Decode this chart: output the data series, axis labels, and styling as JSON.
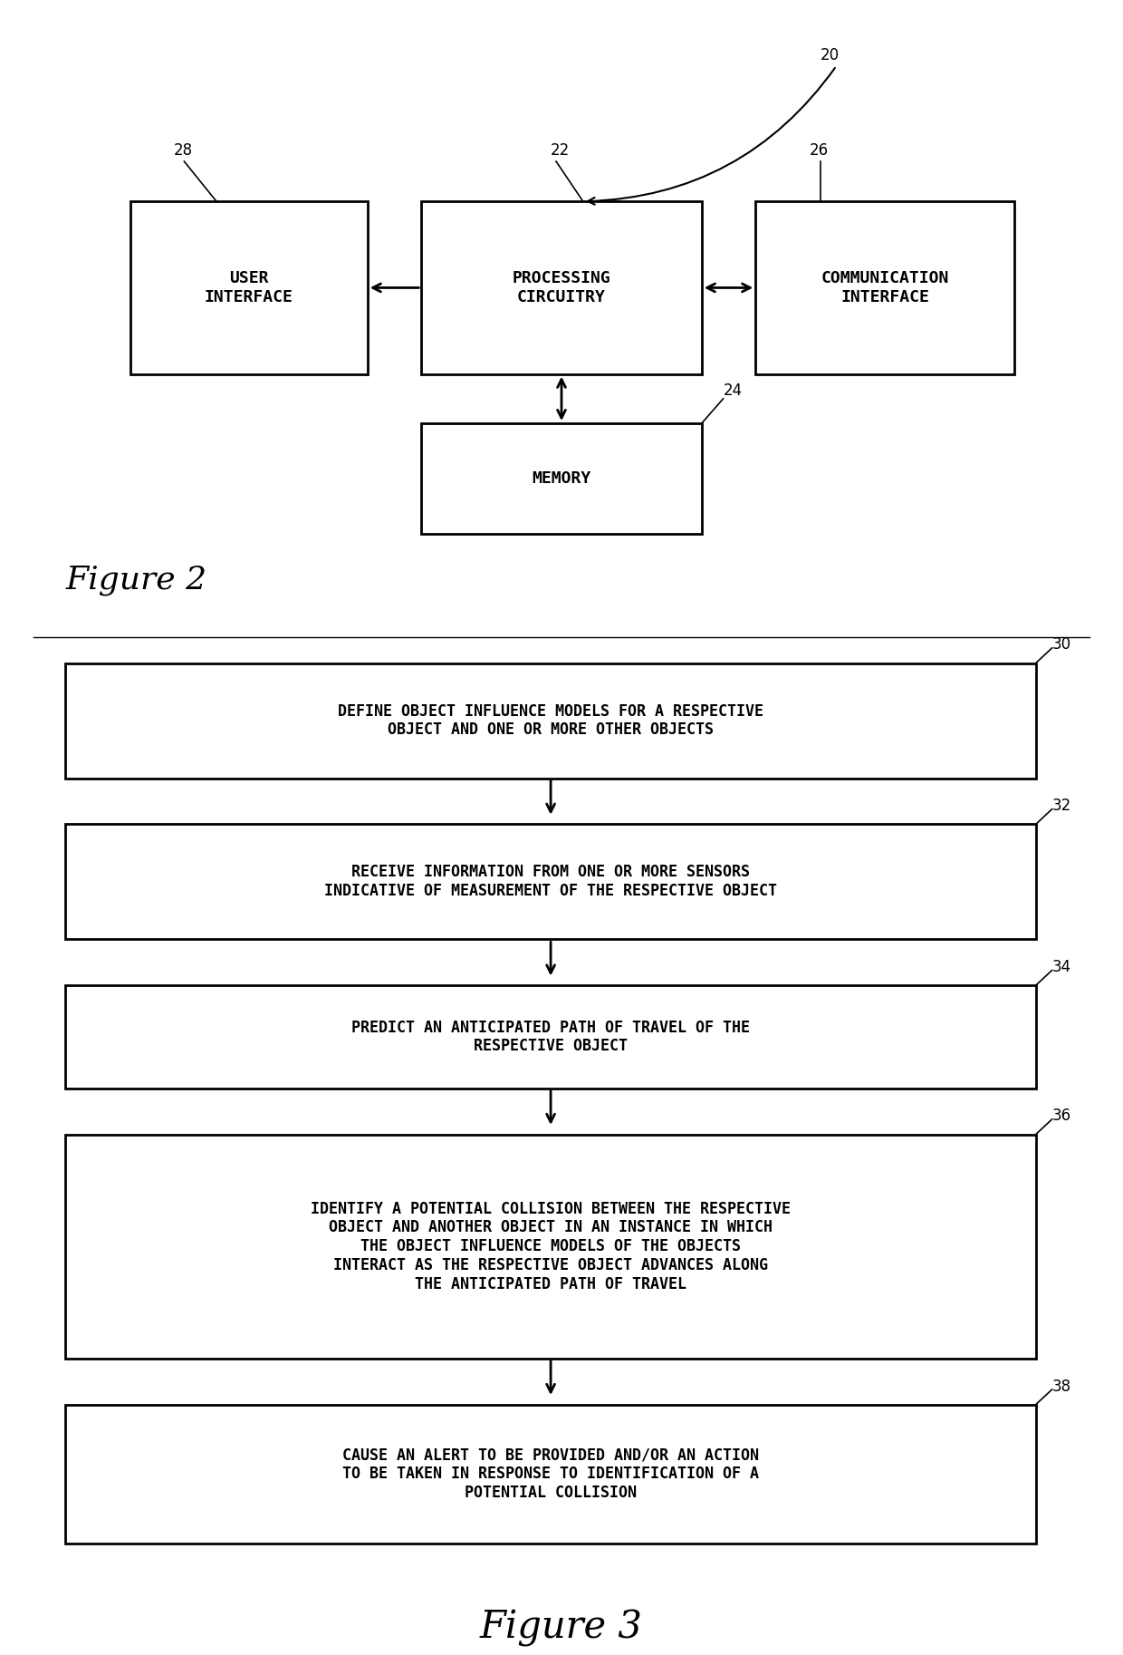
{
  "fig2": {
    "title": "Figure 2",
    "boxes": {
      "user": {
        "label": "USER\nINTERFACE"
      },
      "processing": {
        "label": "PROCESSING\nCIRCUITRY"
      },
      "comm": {
        "label": "COMMUNICATION\nINTERFACE"
      },
      "memory": {
        "label": "MEMORY"
      }
    },
    "labels": {
      "20": "20",
      "22": "22",
      "24": "24",
      "26": "26",
      "28": "28"
    }
  },
  "fig3": {
    "title": "Figure 3",
    "boxes": [
      {
        "id": "30",
        "text": "DEFINE OBJECT INFLUENCE MODELS FOR A RESPECTIVE\nOBJECT AND ONE OR MORE OTHER OBJECTS"
      },
      {
        "id": "32",
        "text": "RECEIVE INFORMATION FROM ONE OR MORE SENSORS\nINDICATIVE OF MEASUREMENT OF THE RESPECTIVE OBJECT"
      },
      {
        "id": "34",
        "text": "PREDICT AN ANTICIPATED PATH OF TRAVEL OF THE\nRESPECTIVE OBJECT"
      },
      {
        "id": "36",
        "text": "IDENTIFY A POTENTIAL COLLISION BETWEEN THE RESPECTIVE\nOBJECT AND ANOTHER OBJECT IN AN INSTANCE IN WHICH\nTHE OBJECT INFLUENCE MODELS OF THE OBJECTS\nINTERACT AS THE RESPECTIVE OBJECT ADVANCES ALONG\nTHE ANTICIPATED PATH OF TRAVEL"
      },
      {
        "id": "38",
        "text": "CAUSE AN ALERT TO BE PROVIDED AND/OR AN ACTION\nTO BE TAKEN IN RESPONSE TO IDENTIFICATION OF A\nPOTENTIAL COLLISION"
      }
    ]
  },
  "bg_color": "#ffffff",
  "box_edge_color": "#000000",
  "text_color": "#000000",
  "arrow_color": "#000000"
}
